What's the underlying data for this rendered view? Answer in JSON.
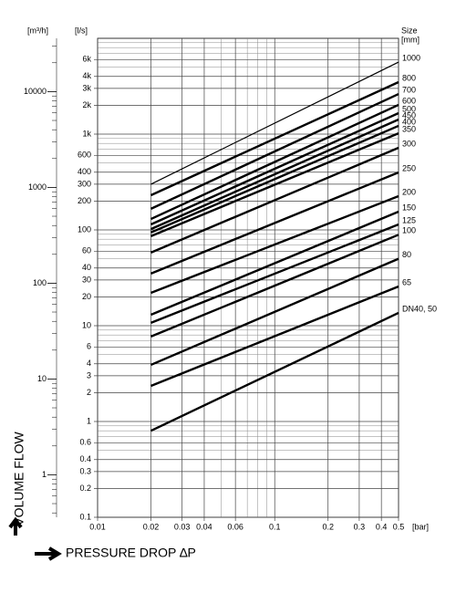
{
  "chart_data": {
    "type": "line",
    "log_x": true,
    "log_y": true,
    "grid": true,
    "color": "#000000",
    "y_unit": "[l/s]",
    "y2_unit": "[m³/h]",
    "x_unit": "[bar]",
    "legend_title": "Size",
    "legend_unit": "[mm]",
    "ylabel": "VOLUME FLOW",
    "xlabel": "PRESSURE DROP ∆P",
    "x": [
      0.02,
      0.5
    ],
    "xlim": [
      0.01,
      0.5
    ],
    "xticks": [
      0.01,
      0.02,
      0.03,
      0.04,
      0.06,
      0.1,
      0.2,
      0.3,
      0.4,
      0.5
    ],
    "x_minor_grid": [
      0.05,
      0.07,
      0.08,
      0.09
    ],
    "ylim": [
      0.1,
      10000
    ],
    "yticks": [
      0.1,
      0.2,
      0.3,
      0.4,
      0.6,
      1,
      2,
      3,
      4,
      6,
      10,
      20,
      30,
      40,
      60,
      100,
      200,
      300,
      400,
      600,
      {
        "value": 1000,
        "label": "1k"
      },
      {
        "value": 2000,
        "label": "2k"
      },
      {
        "value": 3000,
        "label": "3k"
      },
      {
        "value": 4000,
        "label": "4k"
      },
      {
        "value": 6000,
        "label": "6k"
      }
    ],
    "y_minor_grid": [
      0.5,
      0.7,
      0.8,
      0.9,
      5,
      7,
      8,
      9,
      50,
      70,
      80,
      90,
      500,
      700,
      800,
      900,
      5000,
      7000,
      8000,
      9000
    ],
    "y2lim": [
      0.36,
      36000
    ],
    "y2ticks": [
      1,
      10,
      100,
      1000,
      10000
    ],
    "y2_minor_ticks": [
      0.4,
      0.5,
      0.6,
      0.7,
      0.8,
      0.9,
      2,
      3,
      4,
      5,
      6,
      7,
      8,
      9,
      20,
      30,
      40,
      50,
      60,
      70,
      80,
      90,
      200,
      300,
      400,
      500,
      600,
      700,
      800,
      900,
      2000,
      3000,
      4000,
      5000,
      6000,
      7000,
      8000,
      9000,
      20000,
      30000
    ],
    "series": [
      {
        "name": "1000",
        "values": [
          300,
          5650
        ],
        "width": 1.2
      },
      {
        "name": "800",
        "values": [
          230,
          3490
        ],
        "width": 2.4
      },
      {
        "name": "700",
        "values": [
          166,
          2620
        ],
        "width": 2.4
      },
      {
        "name": "600",
        "values": [
          130,
          2020
        ],
        "width": 2.4
      },
      {
        "name": "500",
        "values": [
          114,
          1655
        ],
        "width": 2.4
      },
      {
        "name": "450",
        "values": [
          102,
          1420
        ],
        "width": 2.4
      },
      {
        "name": "400",
        "values": [
          94,
          1220
        ],
        "width": 2.4
      },
      {
        "name": "350",
        "values": [
          86,
          1020
        ],
        "width": 2.4
      },
      {
        "name": "300",
        "values": [
          58,
          720
        ],
        "width": 2.4
      },
      {
        "name": "250",
        "values": [
          35,
          398
        ],
        "width": 2.4
      },
      {
        "name": "200",
        "values": [
          22,
          225
        ],
        "width": 2.4
      },
      {
        "name": "150",
        "values": [
          13,
          155
        ],
        "width": 2.4
      },
      {
        "name": "125",
        "values": [
          10.7,
          114
        ],
        "width": 2.4
      },
      {
        "name": "100",
        "values": [
          7.7,
          89
        ],
        "width": 2.4
      },
      {
        "name": "80",
        "values": [
          3.9,
          50
        ],
        "width": 2.4
      },
      {
        "name": "65",
        "values": [
          2.35,
          25.7
        ],
        "width": 2.4
      },
      {
        "name": "DN40, 50",
        "values": [
          0.8,
          13.6
        ],
        "width": 2.4
      }
    ]
  }
}
